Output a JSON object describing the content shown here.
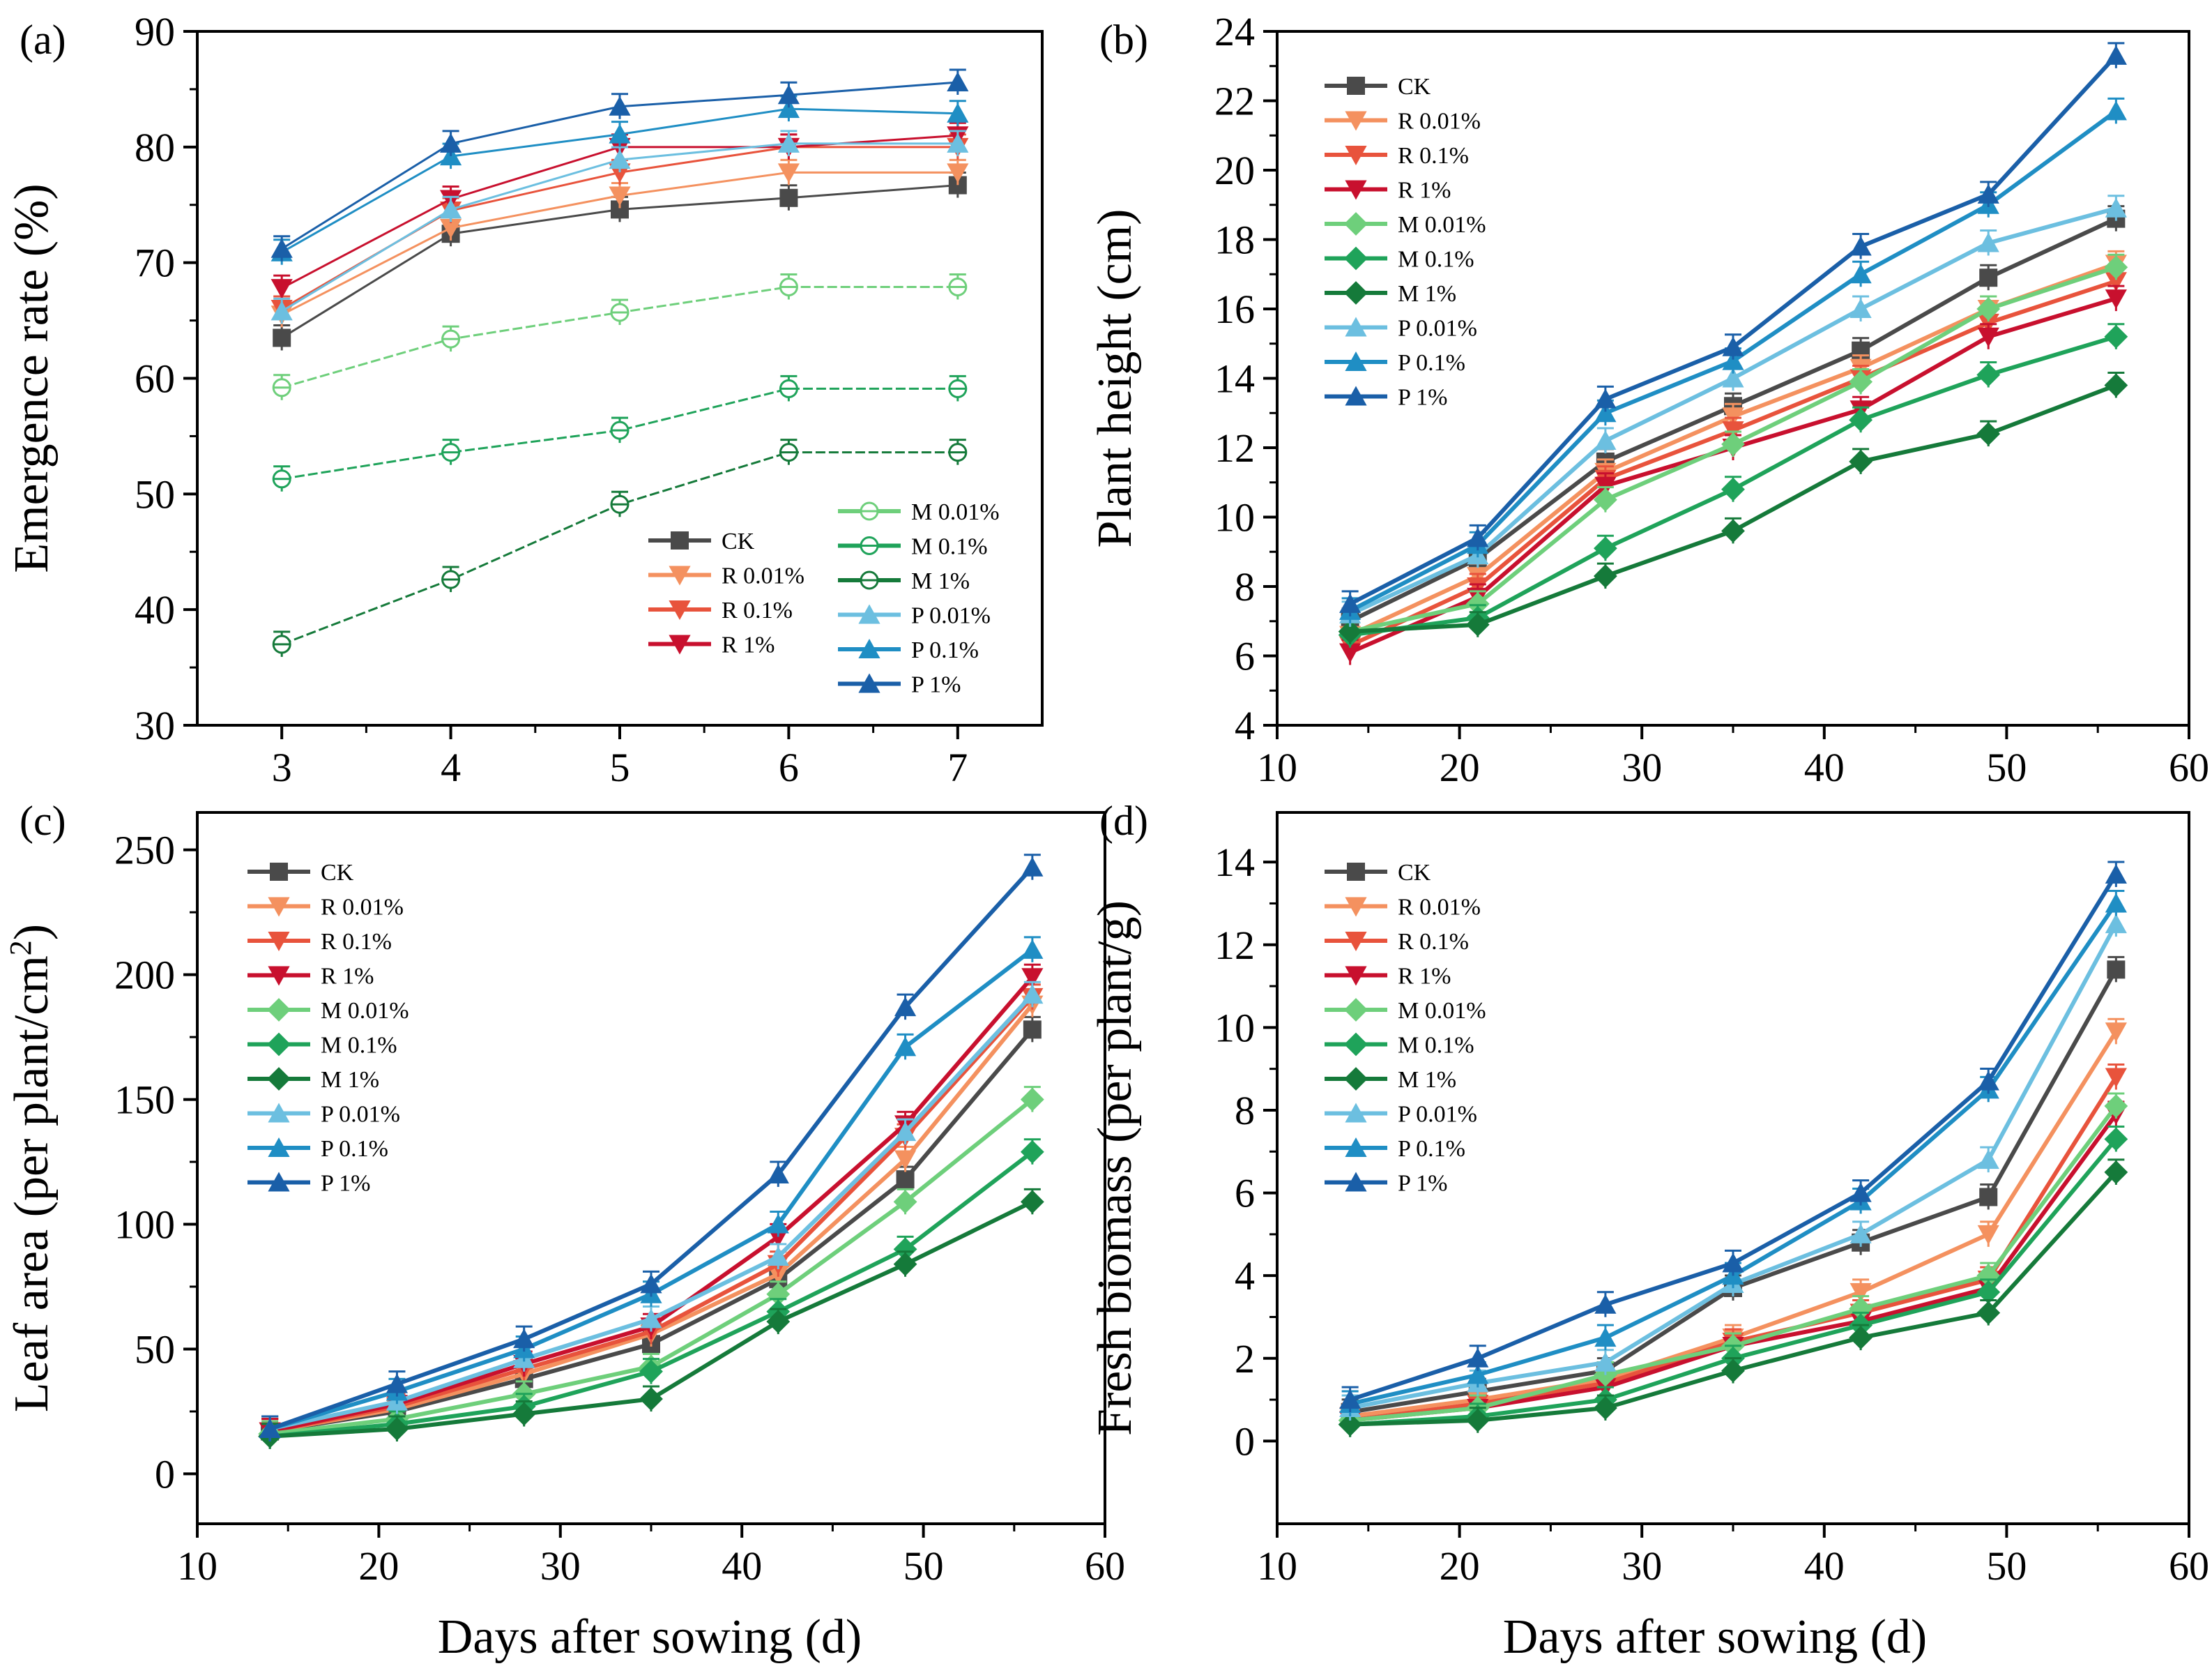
{
  "xlabel": "Days after sowing (d)",
  "treatments": [
    {
      "name": "CK",
      "color": "#4a4a4a",
      "marker": "square"
    },
    {
      "name": "R 0.01%",
      "color": "#f4915f",
      "marker": "triangle-down"
    },
    {
      "name": "R 0.1%",
      "color": "#e8533c",
      "marker": "triangle-down"
    },
    {
      "name": "R 1%",
      "color": "#c8102e",
      "marker": "triangle-down"
    },
    {
      "name": "M 0.01%",
      "color": "#6ecf7b",
      "marker": "diamond"
    },
    {
      "name": "M 0.1%",
      "color": "#1fa35a",
      "marker": "diamond"
    },
    {
      "name": "M 1%",
      "color": "#157a3a",
      "marker": "diamond"
    },
    {
      "name": "P 0.01%",
      "color": "#6cbfe0",
      "marker": "triangle-up"
    },
    {
      "name": "P 0.1%",
      "color": "#1f8ec4",
      "marker": "triangle-up"
    },
    {
      "name": "P 1%",
      "color": "#1a5fa8",
      "marker": "triangle-up"
    }
  ],
  "chart_data": [
    {
      "panel": "(a)",
      "type": "line",
      "ylabel": "Emergence rate (%)",
      "x": [
        3,
        4,
        5,
        6,
        7
      ],
      "xlim": [
        2.5,
        7.5
      ],
      "ylim": [
        30,
        90
      ],
      "xticks": [
        3,
        4,
        5,
        6,
        7
      ],
      "yticks": [
        30,
        40,
        50,
        60,
        70,
        80,
        90
      ],
      "legend_position": "bottom-right",
      "series": [
        {
          "name": "CK",
          "values": [
            63.5,
            72.5,
            74.6,
            75.6,
            76.7
          ]
        },
        {
          "name": "R 0.01%",
          "values": [
            65.5,
            73.0,
            75.8,
            77.8,
            77.8
          ]
        },
        {
          "name": "R 0.1%",
          "values": [
            66.0,
            74.5,
            77.8,
            80.0,
            80.0
          ]
        },
        {
          "name": "R 1%",
          "values": [
            67.8,
            75.5,
            80.0,
            80.0,
            81.0
          ]
        },
        {
          "name": "M 0.01%",
          "values": [
            59.2,
            63.4,
            65.7,
            67.9,
            67.9
          ]
        },
        {
          "name": "M 0.1%",
          "values": [
            51.3,
            53.6,
            55.5,
            59.1,
            59.1
          ]
        },
        {
          "name": "M 1%",
          "values": [
            37.0,
            42.6,
            49.1,
            53.6,
            53.6
          ]
        },
        {
          "name": "P 0.01%",
          "values": [
            65.8,
            74.6,
            78.9,
            80.3,
            80.3
          ]
        },
        {
          "name": "P 0.1%",
          "values": [
            70.9,
            79.2,
            81.1,
            83.3,
            82.9
          ]
        },
        {
          "name": "P 1%",
          "values": [
            71.2,
            80.3,
            83.5,
            84.5,
            85.6
          ]
        }
      ]
    },
    {
      "panel": "(b)",
      "type": "line",
      "ylabel": "Plant height (cm)",
      "x": [
        14,
        21,
        28,
        35,
        42,
        49,
        56
      ],
      "xlim": [
        10,
        60
      ],
      "ylim": [
        4,
        24
      ],
      "xticks": [
        10,
        20,
        30,
        40,
        50,
        60
      ],
      "yticks": [
        4,
        6,
        8,
        10,
        12,
        14,
        16,
        18,
        20,
        22,
        24
      ],
      "legend_position": "top-left",
      "series": [
        {
          "name": "CK",
          "values": [
            7.0,
            8.8,
            11.6,
            13.2,
            14.8,
            16.9,
            18.6
          ]
        },
        {
          "name": "R 0.01%",
          "values": [
            6.6,
            8.3,
            11.3,
            12.9,
            14.3,
            16.0,
            17.3
          ]
        },
        {
          "name": "R 0.1%",
          "values": [
            6.3,
            8.0,
            11.1,
            12.5,
            14.0,
            15.6,
            16.8
          ]
        },
        {
          "name": "R 1%",
          "values": [
            6.1,
            7.7,
            10.9,
            12.0,
            13.1,
            15.2,
            16.3
          ]
        },
        {
          "name": "M 0.01%",
          "values": [
            6.7,
            7.5,
            10.5,
            12.1,
            13.9,
            16.0,
            17.2
          ]
        },
        {
          "name": "M 0.1%",
          "values": [
            6.6,
            7.1,
            9.1,
            10.8,
            12.8,
            14.1,
            15.2
          ]
        },
        {
          "name": "M 1%",
          "values": [
            6.7,
            6.9,
            8.3,
            9.6,
            11.6,
            12.4,
            13.8
          ]
        },
        {
          "name": "P 0.01%",
          "values": [
            7.2,
            8.9,
            12.2,
            14.0,
            16.0,
            17.9,
            18.9
          ]
        },
        {
          "name": "P 0.1%",
          "values": [
            7.3,
            9.2,
            13.0,
            14.5,
            17.0,
            19.0,
            21.7
          ]
        },
        {
          "name": "P 1%",
          "values": [
            7.5,
            9.4,
            13.4,
            14.9,
            17.8,
            19.3,
            23.3
          ]
        }
      ]
    },
    {
      "panel": "(c)",
      "type": "line",
      "ylabel": "Leaf area (per plant/cm²)",
      "ylabel_main": "Leaf area (per plant/cm",
      "ylabel_sup": "2",
      "ylabel_close": ")",
      "x": [
        14,
        21,
        28,
        35,
        42,
        49,
        56
      ],
      "xlim": [
        10,
        60
      ],
      "ylim": [
        -20,
        265
      ],
      "xticks": [
        10,
        20,
        30,
        40,
        50,
        60
      ],
      "yticks": [
        0,
        50,
        100,
        150,
        200,
        250
      ],
      "legend_position": "top-left",
      "series": [
        {
          "name": "CK",
          "values": [
            17,
            25,
            38,
            52,
            78,
            118,
            178
          ]
        },
        {
          "name": "R 0.01%",
          "values": [
            17,
            26,
            40,
            56,
            80,
            126,
            188
          ]
        },
        {
          "name": "R 0.1%",
          "values": [
            17,
            27,
            42,
            57,
            84,
            135,
            191
          ]
        },
        {
          "name": "R 1%",
          "values": [
            17,
            28,
            44,
            59,
            95,
            140,
            199
          ]
        },
        {
          "name": "M 0.01%",
          "values": [
            16,
            22,
            32,
            43,
            72,
            109,
            150
          ]
        },
        {
          "name": "M 0.1%",
          "values": [
            15,
            20,
            27,
            41,
            65,
            90,
            129
          ]
        },
        {
          "name": "M 1%",
          "values": [
            15,
            18,
            24,
            30,
            61,
            84,
            109
          ]
        },
        {
          "name": "P 0.01%",
          "values": [
            18,
            29,
            46,
            62,
            87,
            137,
            192
          ]
        },
        {
          "name": "P 0.1%",
          "values": [
            18,
            33,
            50,
            72,
            100,
            171,
            210
          ]
        },
        {
          "name": "P 1%",
          "values": [
            18,
            36,
            54,
            76,
            120,
            187,
            243
          ]
        }
      ]
    },
    {
      "panel": "(d)",
      "type": "line",
      "ylabel": "Fresh biomass (per plant/g)",
      "x": [
        14,
        21,
        28,
        35,
        42,
        49,
        56
      ],
      "xlim": [
        10,
        60
      ],
      "ylim": [
        -2,
        15.2
      ],
      "xticks": [
        10,
        20,
        30,
        40,
        50,
        60
      ],
      "yticks": [
        0,
        2,
        4,
        6,
        8,
        10,
        12,
        14
      ],
      "legend_position": "top-left",
      "series": [
        {
          "name": "CK",
          "values": [
            0.7,
            1.2,
            1.7,
            3.7,
            4.8,
            5.9,
            11.4
          ]
        },
        {
          "name": "R 0.01%",
          "values": [
            0.6,
            1.0,
            1.5,
            2.5,
            3.6,
            5.0,
            9.9
          ]
        },
        {
          "name": "R 0.1%",
          "values": [
            0.5,
            0.9,
            1.4,
            2.4,
            3.1,
            3.9,
            8.8
          ]
        },
        {
          "name": "R 1%",
          "values": [
            0.5,
            0.8,
            1.3,
            2.3,
            2.9,
            3.7,
            7.9
          ]
        },
        {
          "name": "M 0.01%",
          "values": [
            0.5,
            0.8,
            1.6,
            2.3,
            3.2,
            4.0,
            8.1
          ]
        },
        {
          "name": "M 0.1%",
          "values": [
            0.4,
            0.6,
            1.0,
            2.0,
            2.8,
            3.6,
            7.3
          ]
        },
        {
          "name": "M 1%",
          "values": [
            0.4,
            0.5,
            0.8,
            1.7,
            2.5,
            3.1,
            6.5
          ]
        },
        {
          "name": "P 0.01%",
          "values": [
            0.8,
            1.4,
            1.9,
            3.8,
            5.0,
            6.8,
            12.5
          ]
        },
        {
          "name": "P 0.1%",
          "values": [
            0.9,
            1.6,
            2.5,
            4.0,
            5.8,
            8.5,
            13.0
          ]
        },
        {
          "name": "P 1%",
          "values": [
            1.0,
            2.0,
            3.3,
            4.3,
            6.0,
            8.7,
            13.7
          ]
        }
      ]
    }
  ]
}
